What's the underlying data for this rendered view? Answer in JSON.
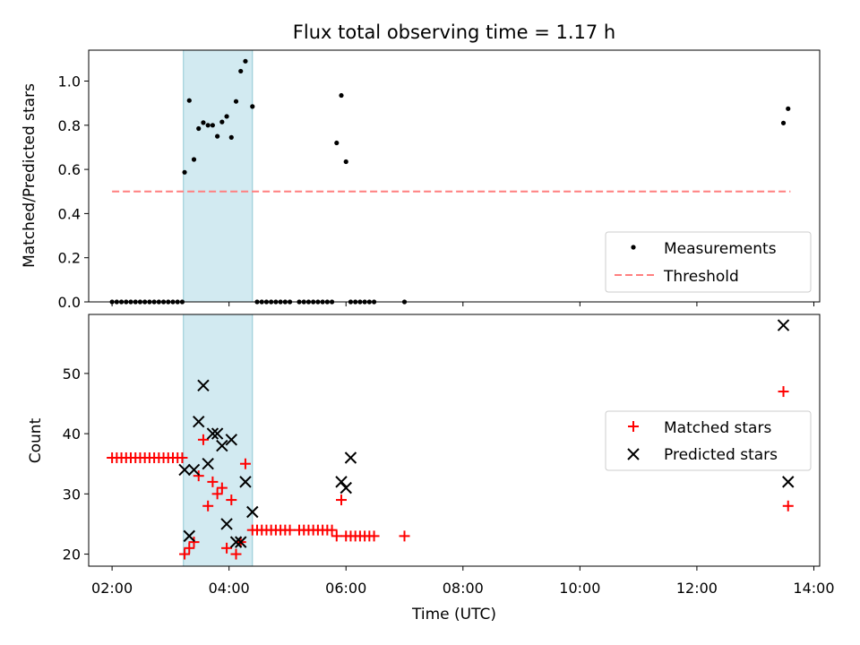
{
  "title": "Flux total observing time = 1.17 h",
  "colors": {
    "measurement": "#000000",
    "threshold": "#ff7f7f",
    "span": "#add8e6",
    "matched": "#ff0000",
    "predicted": "#000000"
  },
  "chart_data": [
    {
      "type": "scatter",
      "ylabel": "Matched/Predicted stars",
      "xlabel": "",
      "xlim": [
        1.6,
        14.1
      ],
      "ylim": [
        0.0,
        1.14
      ],
      "yticks": [
        0.0,
        0.2,
        0.4,
        0.6,
        0.8,
        1.0
      ],
      "shaded_span": [
        3.22,
        4.4
      ],
      "legend_position": "lower-right",
      "series": [
        {
          "name": "Measurements",
          "marker": "dot",
          "x": [
            2.0,
            2.08,
            2.16,
            2.24,
            2.32,
            2.4,
            2.48,
            2.56,
            2.64,
            2.72,
            2.8,
            2.88,
            2.96,
            3.04,
            3.12,
            3.2,
            3.24,
            3.32,
            3.4,
            3.48,
            3.56,
            3.64,
            3.72,
            3.8,
            3.88,
            3.96,
            4.04,
            4.12,
            4.2,
            4.28,
            4.4,
            4.48,
            4.56,
            4.64,
            4.72,
            4.8,
            4.88,
            4.96,
            5.04,
            5.2,
            5.28,
            5.36,
            5.44,
            5.52,
            5.6,
            5.68,
            5.76,
            5.84,
            5.92,
            6.0,
            6.08,
            6.16,
            6.24,
            6.32,
            6.4,
            6.48,
            7.0,
            13.48,
            13.56
          ],
          "y": [
            0,
            0,
            0,
            0,
            0,
            0,
            0,
            0,
            0,
            0,
            0,
            0,
            0,
            0,
            0,
            0,
            0.587,
            0.912,
            0.645,
            0.785,
            0.812,
            0.8,
            0.8,
            0.75,
            0.815,
            0.84,
            0.745,
            0.908,
            1.045,
            1.09,
            0.885,
            0,
            0,
            0,
            0,
            0,
            0,
            0,
            0,
            0,
            0,
            0,
            0,
            0,
            0,
            0,
            0,
            0.72,
            0.935,
            0.635,
            0,
            0,
            0,
            0,
            0,
            0,
            0,
            0.81,
            0.875
          ]
        },
        {
          "name": "Threshold",
          "line": "dashed",
          "x": [
            2.0,
            13.6
          ],
          "y": [
            0.5,
            0.5
          ]
        }
      ]
    },
    {
      "type": "scatter",
      "ylabel": "Count",
      "xlabel": "Time (UTC)",
      "xlim": [
        1.6,
        14.1
      ],
      "ylim": [
        18.0,
        59.8
      ],
      "yticks": [
        20,
        30,
        40,
        50
      ],
      "xticks": [
        2,
        4,
        6,
        8,
        10,
        12,
        14
      ],
      "xtick_labels": [
        "02:00",
        "04:00",
        "06:00",
        "08:00",
        "10:00",
        "12:00",
        "14:00"
      ],
      "shaded_span": [
        3.22,
        4.4
      ],
      "legend_position": "right",
      "series": [
        {
          "name": "Matched stars",
          "marker": "plus",
          "x": [
            2.0,
            2.08,
            2.16,
            2.24,
            2.32,
            2.4,
            2.48,
            2.56,
            2.64,
            2.72,
            2.8,
            2.88,
            2.96,
            3.04,
            3.12,
            3.2,
            3.24,
            3.32,
            3.4,
            3.48,
            3.56,
            3.64,
            3.72,
            3.8,
            3.88,
            3.96,
            4.04,
            4.12,
            4.2,
            4.28,
            4.4,
            4.48,
            4.56,
            4.64,
            4.72,
            4.8,
            4.88,
            4.96,
            5.04,
            5.2,
            5.28,
            5.36,
            5.44,
            5.52,
            5.6,
            5.68,
            5.76,
            5.84,
            5.92,
            6.0,
            6.08,
            6.16,
            6.24,
            6.32,
            6.4,
            6.48,
            7.0,
            13.48,
            13.56
          ],
          "y": [
            36,
            36,
            36,
            36,
            36,
            36,
            36,
            36,
            36,
            36,
            36,
            36,
            36,
            36,
            36,
            36,
            20,
            21,
            22,
            33,
            39,
            28,
            32,
            30,
            31,
            21,
            29,
            20,
            22,
            35,
            24,
            24,
            24,
            24,
            24,
            24,
            24,
            24,
            24,
            24,
            24,
            24,
            24,
            24,
            24,
            24,
            24,
            23,
            29,
            23,
            23,
            23,
            23,
            23,
            23,
            23,
            23,
            47,
            28
          ]
        },
        {
          "name": "Predicted stars",
          "marker": "cross",
          "x": [
            3.24,
            3.32,
            3.4,
            3.48,
            3.56,
            3.64,
            3.72,
            3.8,
            3.88,
            3.96,
            4.04,
            4.12,
            4.2,
            4.28,
            4.4,
            5.92,
            6.0,
            6.08,
            13.48,
            13.56
          ],
          "y": [
            34,
            23,
            34,
            42,
            48,
            35,
            40,
            40,
            38,
            25,
            39,
            22,
            22,
            32,
            27,
            32,
            31,
            36,
            58,
            32
          ]
        }
      ]
    }
  ]
}
